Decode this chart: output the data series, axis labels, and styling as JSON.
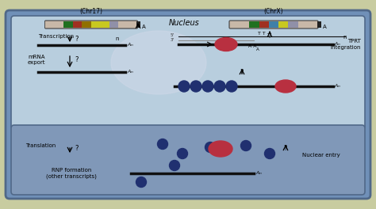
{
  "fig_width": 4.74,
  "fig_height": 2.64,
  "dpi": 100,
  "bg_page": "#c8cca0",
  "bg_outer_fill": "#7090b8",
  "bg_nucleus": "#b8cede",
  "bg_cytoplasm": "#8098b8",
  "border_color": "#506888",
  "text_color": "#000000",
  "chr17_label": "(Chr17)",
  "chrx_label": "(ChrX)",
  "nucleus_label": "Nucleus",
  "tprt_label": "TPRT\nIntegration",
  "transcription_label": "Transcription",
  "mrna_export_label": "mRNA\nexport",
  "translation_label": "Translation",
  "rnp_label": "RNP formation\n(other transcripts)",
  "nuclear_entry_label": "Nuclear entry",
  "q": "?",
  "red_color": "#b83040",
  "blue_color": "#2030708",
  "dark_blue": "#203070",
  "line_color": "#111111",
  "chr17_segs": [
    "#c8b8a8",
    "#c8b8a8",
    "#207020",
    "#a03020",
    "#907000",
    "#c8c820",
    "#c8c820",
    "#9090a8",
    "#c8b8a8",
    "#c8b8a8"
  ],
  "chrx_segs": [
    "#c8b8a8",
    "#c8b8a8",
    "#207020",
    "#a03020",
    "#4080a8",
    "#c8c820",
    "#9090a8",
    "#c8b8a8",
    "#c8b8a8"
  ]
}
